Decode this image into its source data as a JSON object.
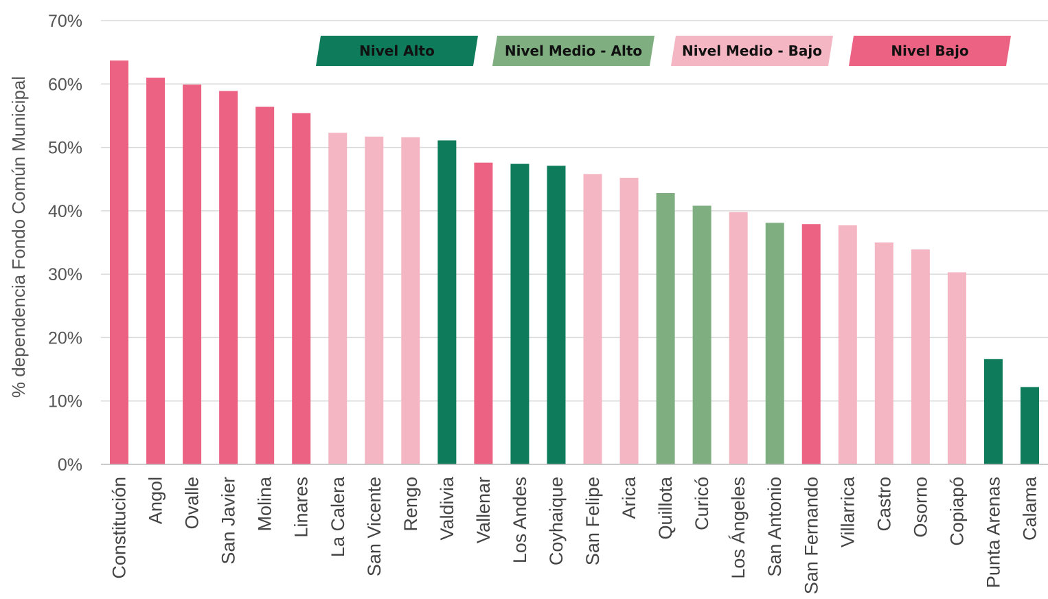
{
  "chart_data": {
    "type": "bar",
    "title": "",
    "xlabel": "",
    "ylabel": "% dependencia Fondo Común Municipal",
    "ylim": [
      0,
      70
    ],
    "yticks": [
      "0%",
      "10%",
      "20%",
      "30%",
      "40%",
      "50%",
      "60%",
      "70%"
    ],
    "grid": true,
    "legend_position": "top",
    "levels": [
      {
        "key": "alto",
        "label": "Nivel Alto",
        "color": "#0e7b5a"
      },
      {
        "key": "medio_alto",
        "label": "Nivel Medio - Alto",
        "color": "#7fae80"
      },
      {
        "key": "medio_bajo",
        "label": "Nivel Medio - Bajo",
        "color": "#f4b6c3"
      },
      {
        "key": "bajo",
        "label": "Nivel Bajo",
        "color": "#ec6282"
      }
    ],
    "categories": [
      "Constitución",
      "Angol",
      "Ovalle",
      "San Javier",
      "Molina",
      "Linares",
      "La Calera",
      "San Vicente",
      "Rengo",
      "Valdivia",
      "Vallenar",
      "Los Andes",
      "Coyhaique",
      "San Felipe",
      "Arica",
      "Quillota",
      "Curicó",
      "Los Ángeles",
      "San Antonio",
      "San Fernando",
      "Villarrica",
      "Castro",
      "Osorno",
      "Copiapó",
      "Punta Arenas",
      "Calama"
    ],
    "values": [
      63.7,
      61.0,
      59.9,
      58.9,
      56.4,
      55.4,
      52.3,
      51.7,
      51.6,
      51.1,
      47.6,
      47.4,
      47.1,
      45.8,
      45.2,
      42.8,
      40.8,
      39.8,
      38.1,
      37.9,
      37.7,
      35.0,
      33.9,
      30.3,
      16.6,
      12.2
    ],
    "bar_levels": [
      "bajo",
      "bajo",
      "bajo",
      "bajo",
      "bajo",
      "bajo",
      "medio_bajo",
      "medio_bajo",
      "medio_bajo",
      "alto",
      "bajo",
      "alto",
      "alto",
      "medio_bajo",
      "medio_bajo",
      "medio_alto",
      "medio_alto",
      "medio_bajo",
      "medio_alto",
      "bajo",
      "medio_bajo",
      "medio_bajo",
      "medio_bajo",
      "medio_bajo",
      "alto",
      "alto"
    ]
  }
}
